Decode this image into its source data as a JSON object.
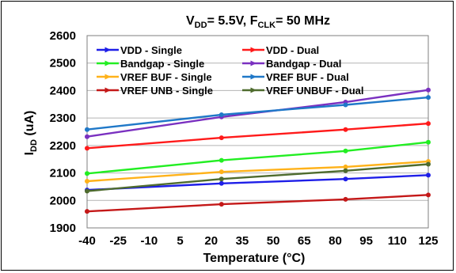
{
  "chart_data": {
    "type": "line",
    "title_parts": [
      "V",
      "DD",
      "= 5.5V, F",
      "CLK",
      "= 50 MHz"
    ],
    "xlabel": "Temperature (°C)",
    "ylabel_parts": [
      "I",
      "DD",
      " (uA)"
    ],
    "xlim": [
      -40,
      125
    ],
    "ylim": [
      1900,
      2600
    ],
    "x_ticks": [
      -40,
      -25,
      -10,
      5,
      20,
      35,
      50,
      65,
      80,
      95,
      110,
      125
    ],
    "y_ticks": [
      1900,
      2000,
      2100,
      2200,
      2300,
      2400,
      2500,
      2600
    ],
    "grid": "horizontal",
    "legend_position": "top",
    "x": [
      -40,
      25,
      85,
      125
    ],
    "series": [
      {
        "name": "VDD - Single",
        "color": "#1e1ee8",
        "values": [
          2038,
          2062,
          2078,
          2092
        ]
      },
      {
        "name": "VDD - Dual",
        "color": "#ff1a1a",
        "values": [
          2190,
          2228,
          2258,
          2280
        ]
      },
      {
        "name": "Bandgap - Single",
        "color": "#22ee22",
        "values": [
          2098,
          2146,
          2180,
          2212
        ]
      },
      {
        "name": "Bandgap - Dual",
        "color": "#7a30c0",
        "values": [
          2232,
          2304,
          2358,
          2402
        ]
      },
      {
        "name": "VREF BUF - Single",
        "color": "#ffb21a",
        "values": [
          2070,
          2104,
          2122,
          2142
        ]
      },
      {
        "name": "VREF BUF - Dual",
        "color": "#1f78c8",
        "values": [
          2258,
          2312,
          2348,
          2375
        ]
      },
      {
        "name": "VREF UNB - Single",
        "color": "#c41818",
        "values": [
          1960,
          1986,
          2004,
          2020
        ]
      },
      {
        "name": "VREF UNBUF - Dual",
        "color": "#4e6b2e",
        "values": [
          2034,
          2078,
          2108,
          2132
        ]
      }
    ]
  }
}
